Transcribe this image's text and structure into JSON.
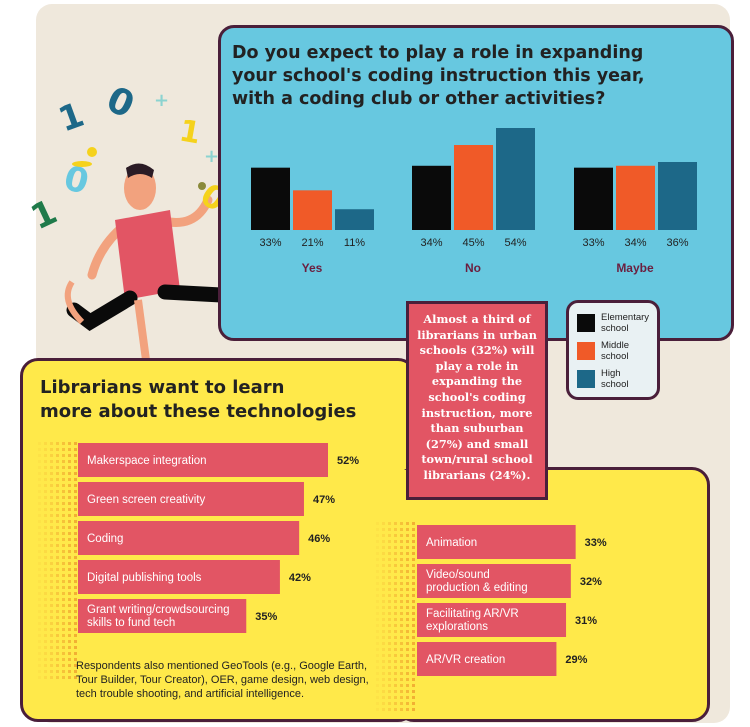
{
  "colors": {
    "elementary": "#0a0a0a",
    "middle": "#f05a28",
    "high": "#1d6888",
    "pink_bar": "#e25564",
    "blue_panel": "#67c8e0",
    "yellow_panel": "#ffe94a",
    "outline": "#4a1f3a",
    "group_label": "#6b1f3f"
  },
  "chart_data": [
    {
      "type": "bar",
      "title": "Do you expect to play a role in expanding your school's coding instruction this year, with a coding club or other activities?",
      "categories": [
        "Yes",
        "No",
        "Maybe"
      ],
      "series": [
        {
          "name": "Elementary school",
          "values": [
            33,
            34,
            33
          ],
          "value_labels": [
            "33%",
            "34%",
            "33%"
          ]
        },
        {
          "name": "Middle school",
          "values": [
            21,
            45,
            34
          ],
          "value_labels": [
            "21%",
            "45%",
            "34%"
          ]
        },
        {
          "name": "High school",
          "values": [
            11,
            54,
            36
          ],
          "value_labels": [
            "11%",
            "54%",
            "36%"
          ]
        }
      ],
      "ylim": [
        0,
        54
      ],
      "legend": "bottom-right"
    },
    {
      "type": "bar",
      "orientation": "horizontal",
      "title": "Librarians want to learn more about these technologies",
      "ylim": [
        0,
        52
      ],
      "groups": [
        [
          {
            "label": "Makerspace integration",
            "value": 52,
            "value_label": "52%"
          },
          {
            "label": "Green screen creativity",
            "value": 47,
            "value_label": "47%"
          },
          {
            "label": "Coding",
            "value": 46,
            "value_label": "46%"
          },
          {
            "label": "Digital publishing tools",
            "value": 42,
            "value_label": "42%"
          },
          {
            "label": "Grant writing/crowdsourcing skills to fund tech",
            "lines": [
              "Grant writing/crowdsourcing",
              "skills to fund tech"
            ],
            "value": 35,
            "value_label": "35%"
          }
        ],
        [
          {
            "label": "Animation",
            "value": 33,
            "value_label": "33%"
          },
          {
            "label": "Video/sound production & editing",
            "lines": [
              "Video/sound",
              "production & editing"
            ],
            "value": 32,
            "value_label": "32%"
          },
          {
            "label": "Facilitating AR/VR explorations",
            "lines": [
              "Facilitating AR/VR",
              "explorations"
            ],
            "value": 31,
            "value_label": "31%"
          },
          {
            "label": "AR/VR creation",
            "value": 29,
            "value_label": "29%"
          }
        ]
      ]
    }
  ],
  "question": {
    "lines": [
      "Do you expect to play a role in expanding",
      "your school's coding instruction this year,",
      "with a coding club or other activities?"
    ]
  },
  "legend": {
    "items": [
      {
        "lines": [
          "Elementary",
          "school"
        ],
        "color": "#0a0a0a"
      },
      {
        "lines": [
          "Middle",
          "school"
        ],
        "color": "#f05a28"
      },
      {
        "lines": [
          "High",
          "school"
        ],
        "color": "#1d6888"
      }
    ]
  },
  "callout": {
    "lines": [
      "Almost a third of",
      "librarians in urban",
      "schools (32%) will",
      "play a role in",
      "expanding the",
      "school's coding",
      "instruction, more",
      "than suburban",
      "(27%) and small",
      "town/rural school",
      "librarians (24%)."
    ]
  },
  "tech": {
    "title_lines": [
      "Librarians want to learn",
      "more about these technologies"
    ]
  },
  "footnote": {
    "text": "Respondents also mentioned  GeoTools (e.g., Google Earth, Tour Builder, Tour Creator), OER, game design, web design, tech trouble shooting, and artificial intelligence."
  },
  "illustration": {
    "glyphs": [
      "1",
      "0",
      "0",
      "1",
      "0",
      "1",
      "+",
      "+"
    ],
    "icons": [
      "juggler-icon",
      "digit-icons",
      "plus-sparkle-icons"
    ]
  }
}
